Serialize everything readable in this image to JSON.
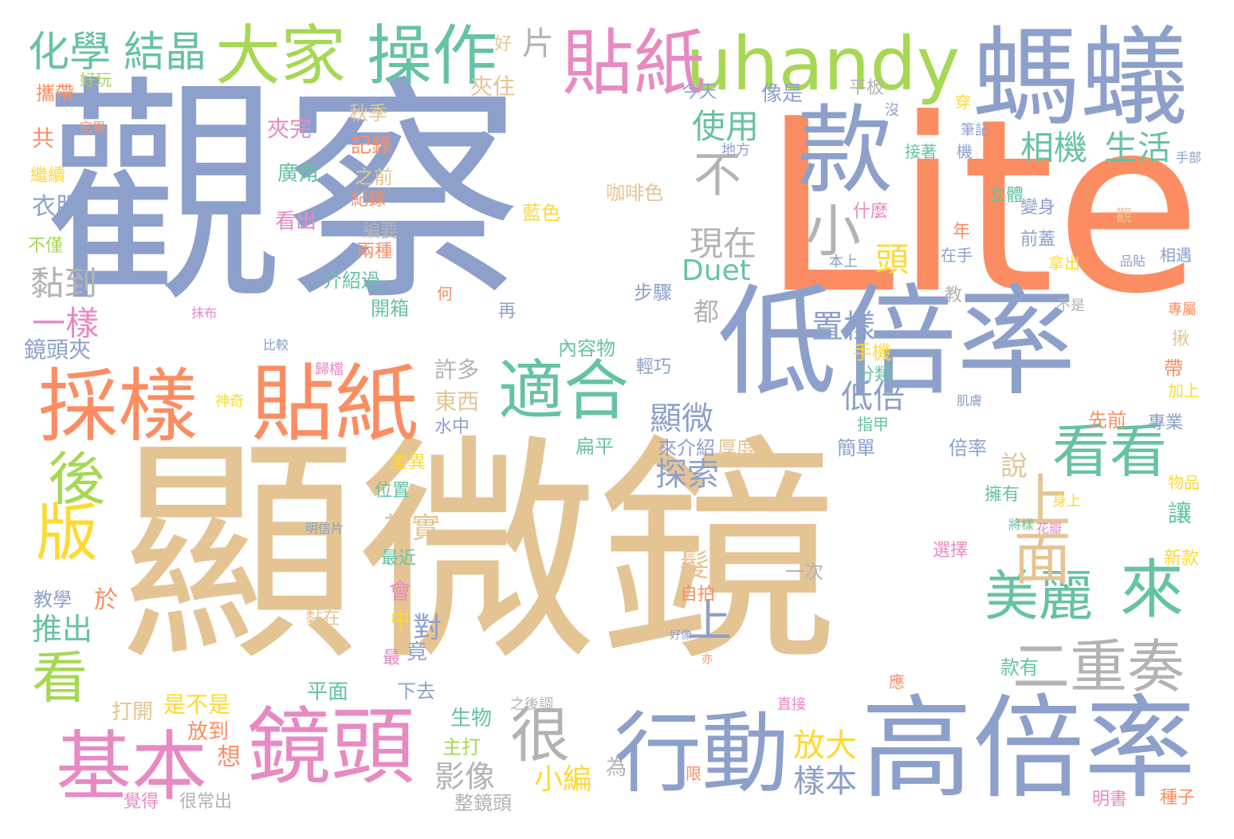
{
  "palette": {
    "blue": "#8da0cb",
    "orange": "#fc8d62",
    "tan": "#e5c494",
    "green": "#66c2a5",
    "lime": "#a6d854",
    "pink": "#e78ac3",
    "yellow": "#ffd92f",
    "gray": "#b3b3b3"
  },
  "words": [
    {
      "text": "觀察",
      "color": "blue"
    },
    {
      "text": "Lite",
      "color": "orange"
    },
    {
      "text": "顯微鏡",
      "color": "tan"
    },
    {
      "text": "低倍率",
      "color": "blue"
    },
    {
      "text": "高倍率",
      "color": "blue"
    },
    {
      "text": "螞蟻",
      "color": "blue"
    },
    {
      "text": "款",
      "color": "blue"
    },
    {
      "text": "uhandy",
      "color": "lime"
    },
    {
      "text": "貼紙",
      "color": "pink"
    },
    {
      "text": "貼紙",
      "color": "orange"
    },
    {
      "text": "採樣",
      "color": "orange"
    },
    {
      "text": "鏡頭",
      "color": "pink"
    },
    {
      "text": "行動",
      "color": "blue"
    },
    {
      "text": "基本",
      "color": "pink"
    },
    {
      "text": "適合",
      "color": "green"
    },
    {
      "text": "大家",
      "color": "lime"
    },
    {
      "text": "操作",
      "color": "green"
    },
    {
      "text": "化學",
      "color": "green"
    },
    {
      "text": "結晶",
      "color": "green"
    },
    {
      "text": "美麗",
      "color": "green"
    },
    {
      "text": "來",
      "color": "green"
    },
    {
      "text": "看看",
      "color": "green"
    },
    {
      "text": "二重奏",
      "color": "gray"
    },
    {
      "text": "很",
      "color": "gray"
    },
    {
      "text": "不",
      "color": "gray"
    },
    {
      "text": "小",
      "color": "gray"
    },
    {
      "text": "版",
      "color": "yellow"
    },
    {
      "text": "後",
      "color": "lime"
    },
    {
      "text": "看",
      "color": "lime"
    },
    {
      "text": "上面",
      "color": "tan"
    },
    {
      "text": "上",
      "color": "blue"
    },
    {
      "text": "片",
      "color": "gray"
    },
    {
      "text": "好",
      "color": "tan"
    },
    {
      "text": "使用",
      "color": "green"
    },
    {
      "text": "相機",
      "color": "green"
    },
    {
      "text": "生活",
      "color": "green"
    },
    {
      "text": "現在",
      "color": "gray"
    },
    {
      "text": "頭",
      "color": "yellow"
    },
    {
      "text": "Duet",
      "color": "green"
    },
    {
      "text": "置樣",
      "color": "blue"
    },
    {
      "text": "低倍",
      "color": "blue"
    },
    {
      "text": "顯微",
      "color": "blue"
    },
    {
      "text": "探索",
      "color": "blue"
    },
    {
      "text": "黏到",
      "color": "gray"
    },
    {
      "text": "一樣",
      "color": "pink"
    },
    {
      "text": "鏡頭夾",
      "color": "blue"
    },
    {
      "text": "推出",
      "color": "green"
    },
    {
      "text": "衣服",
      "color": "blue"
    },
    {
      "text": "共",
      "color": "orange"
    },
    {
      "text": "攜帶",
      "color": "orange"
    },
    {
      "text": "繼續",
      "color": "yellow"
    },
    {
      "text": "不僅",
      "color": "lime"
    },
    {
      "text": "好玩",
      "color": "lime"
    },
    {
      "text": "教學",
      "color": "blue"
    },
    {
      "text": "於",
      "color": "orange"
    },
    {
      "text": "夾住",
      "color": "tan"
    },
    {
      "text": "夾完",
      "color": "pink"
    },
    {
      "text": "秋季",
      "color": "tan"
    },
    {
      "text": "記錄",
      "color": "orange"
    },
    {
      "text": "廣角",
      "color": "green"
    },
    {
      "text": "紀錄",
      "color": "orange"
    },
    {
      "text": "之前",
      "color": "tan"
    },
    {
      "text": "看出",
      "color": "pink"
    },
    {
      "text": "藍色",
      "color": "yellow"
    },
    {
      "text": "咖啡色",
      "color": "tan"
    },
    {
      "text": "編要",
      "color": "gray"
    },
    {
      "text": "兩種",
      "color": "orange"
    },
    {
      "text": "介紹過",
      "color": "green"
    },
    {
      "text": "開箱",
      "color": "green"
    },
    {
      "text": "再",
      "color": "blue"
    },
    {
      "text": "內容物",
      "color": "green"
    },
    {
      "text": "輕巧",
      "color": "blue"
    },
    {
      "text": "步驟",
      "color": "blue"
    },
    {
      "text": "都",
      "color": "gray"
    },
    {
      "text": "許多",
      "color": "gray"
    },
    {
      "text": "東西",
      "color": "tan"
    },
    {
      "text": "水中",
      "color": "blue"
    },
    {
      "text": "其實",
      "color": "tan"
    },
    {
      "text": "最近",
      "color": "green"
    },
    {
      "text": "會",
      "color": "pink"
    },
    {
      "text": "中",
      "color": "yellow"
    },
    {
      "text": "對",
      "color": "blue"
    },
    {
      "text": "竟",
      "color": "blue"
    },
    {
      "text": "最",
      "color": "pink"
    },
    {
      "text": "下去",
      "color": "blue"
    },
    {
      "text": "平面",
      "color": "green"
    },
    {
      "text": "是不是",
      "color": "yellow"
    },
    {
      "text": "打開",
      "color": "tan"
    },
    {
      "text": "放到",
      "color": "orange"
    },
    {
      "text": "生物",
      "color": "green"
    },
    {
      "text": "主打",
      "color": "lime"
    },
    {
      "text": "想",
      "color": "orange"
    },
    {
      "text": "影像",
      "color": "gray"
    },
    {
      "text": "小編",
      "color": "yellow"
    },
    {
      "text": "整鏡頭",
      "color": "gray"
    },
    {
      "text": "很常出",
      "color": "gray"
    },
    {
      "text": "覺得",
      "color": "pink"
    },
    {
      "text": "為",
      "color": "gray"
    },
    {
      "text": "放大",
      "color": "yellow"
    },
    {
      "text": "樣本",
      "color": "blue"
    },
    {
      "text": "說",
      "color": "tan"
    },
    {
      "text": "來介紹",
      "color": "blue"
    },
    {
      "text": "厚度",
      "color": "tan"
    },
    {
      "text": "扁平",
      "color": "green"
    },
    {
      "text": "簡單",
      "color": "blue"
    },
    {
      "text": "倍率",
      "color": "blue"
    },
    {
      "text": "先前",
      "color": "orange"
    },
    {
      "text": "專業",
      "color": "blue"
    },
    {
      "text": "物品",
      "color": "yellow"
    },
    {
      "text": "擁有",
      "color": "green"
    },
    {
      "text": "讓",
      "color": "green"
    },
    {
      "text": "新款",
      "color": "yellow"
    },
    {
      "text": "選擇",
      "color": "pink"
    },
    {
      "text": "一次",
      "color": "gray"
    },
    {
      "text": "自拍",
      "color": "orange"
    },
    {
      "text": "髮",
      "color": "tan"
    },
    {
      "text": "款有",
      "color": "green"
    },
    {
      "text": "應",
      "color": "orange"
    },
    {
      "text": "明書",
      "color": "pink"
    },
    {
      "text": "種子",
      "color": "orange"
    },
    {
      "text": "差異",
      "color": "yellow"
    },
    {
      "text": "位置",
      "color": "green"
    },
    {
      "text": "手機",
      "color": "yellow"
    },
    {
      "text": "分類",
      "color": "green"
    },
    {
      "text": "指甲",
      "color": "green"
    },
    {
      "text": "今天",
      "color": "blue"
    },
    {
      "text": "像是",
      "color": "blue"
    },
    {
      "text": "平板",
      "color": "gray"
    },
    {
      "text": "穿",
      "color": "yellow"
    },
    {
      "text": "筆記",
      "color": "blue"
    },
    {
      "text": "機",
      "color": "blue"
    },
    {
      "text": "接著",
      "color": "green"
    },
    {
      "text": "地方",
      "color": "blue"
    },
    {
      "text": "手部",
      "color": "blue"
    },
    {
      "text": "立體",
      "color": "green"
    },
    {
      "text": "變身",
      "color": "blue"
    },
    {
      "text": "什麼",
      "color": "pink"
    },
    {
      "text": "年",
      "color": "orange"
    },
    {
      "text": "觀",
      "color": "tan"
    },
    {
      "text": "前蓋",
      "color": "blue"
    },
    {
      "text": "拿出",
      "color": "yellow"
    },
    {
      "text": "相遇",
      "color": "blue"
    },
    {
      "text": "品貼",
      "color": "blue"
    },
    {
      "text": "在手",
      "color": "blue"
    },
    {
      "text": "本上",
      "color": "blue"
    },
    {
      "text": "教",
      "color": "gray"
    },
    {
      "text": "不是",
      "color": "gray"
    },
    {
      "text": "專屬",
      "color": "orange"
    },
    {
      "text": "揪",
      "color": "tan"
    },
    {
      "text": "帶",
      "color": "orange"
    },
    {
      "text": "加上",
      "color": "yellow"
    },
    {
      "text": "肌膚",
      "color": "blue"
    },
    {
      "text": "身上",
      "color": "yellow"
    },
    {
      "text": "花瓣",
      "color": "pink"
    },
    {
      "text": "將樣",
      "color": "green"
    },
    {
      "text": "沒",
      "color": "blue"
    },
    {
      "text": "亦",
      "color": "orange"
    },
    {
      "text": "直接",
      "color": "pink"
    },
    {
      "text": "黏在",
      "color": "tan"
    },
    {
      "text": "明信片",
      "color": "blue"
    },
    {
      "text": "貼",
      "color": "tan"
    },
    {
      "text": "之後調",
      "color": "gray"
    },
    {
      "text": "好像",
      "color": "blue"
    },
    {
      "text": "限",
      "color": "orange"
    },
    {
      "text": "神奇",
      "color": "yellow"
    },
    {
      "text": "比較",
      "color": "blue"
    },
    {
      "text": "抹布",
      "color": "pink"
    },
    {
      "text": "歸檔",
      "color": "pink"
    },
    {
      "text": "何",
      "color": "orange"
    },
    {
      "text": "完畢",
      "color": "orange"
    }
  ]
}
